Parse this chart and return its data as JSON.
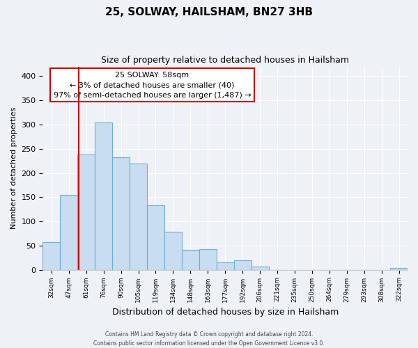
{
  "title": "25, SOLWAY, HAILSHAM, BN27 3HB",
  "subtitle": "Size of property relative to detached houses in Hailsham",
  "xlabel": "Distribution of detached houses by size in Hailsham",
  "ylabel": "Number of detached properties",
  "bar_labels": [
    "32sqm",
    "47sqm",
    "61sqm",
    "76sqm",
    "90sqm",
    "105sqm",
    "119sqm",
    "134sqm",
    "148sqm",
    "163sqm",
    "177sqm",
    "192sqm",
    "206sqm",
    "221sqm",
    "235sqm",
    "250sqm",
    "264sqm",
    "279sqm",
    "293sqm",
    "308sqm",
    "322sqm"
  ],
  "bar_values": [
    57,
    155,
    238,
    305,
    233,
    219,
    133,
    78,
    41,
    42,
    15,
    20,
    7,
    0,
    0,
    0,
    0,
    0,
    0,
    0,
    3
  ],
  "bar_color": "#c9ddf0",
  "bar_edge_color": "#6aaed6",
  "highlight_color": "#cc0000",
  "annotation_title": "25 SOLWAY: 58sqm",
  "annotation_line1": "← 3% of detached houses are smaller (40)",
  "annotation_line2": "97% of semi-detached houses are larger (1,487) →",
  "annotation_box_edge": "#cc0000",
  "ylim": [
    0,
    420
  ],
  "yticks": [
    0,
    50,
    100,
    150,
    200,
    250,
    300,
    350,
    400
  ],
  "footer1": "Contains HM Land Registry data © Crown copyright and database right 2024.",
  "footer2": "Contains public sector information licensed under the Open Government Licence v3.0.",
  "bg_color": "#eef2f7",
  "plot_bg_color": "#eef2f7",
  "grid_color": "#ffffff"
}
